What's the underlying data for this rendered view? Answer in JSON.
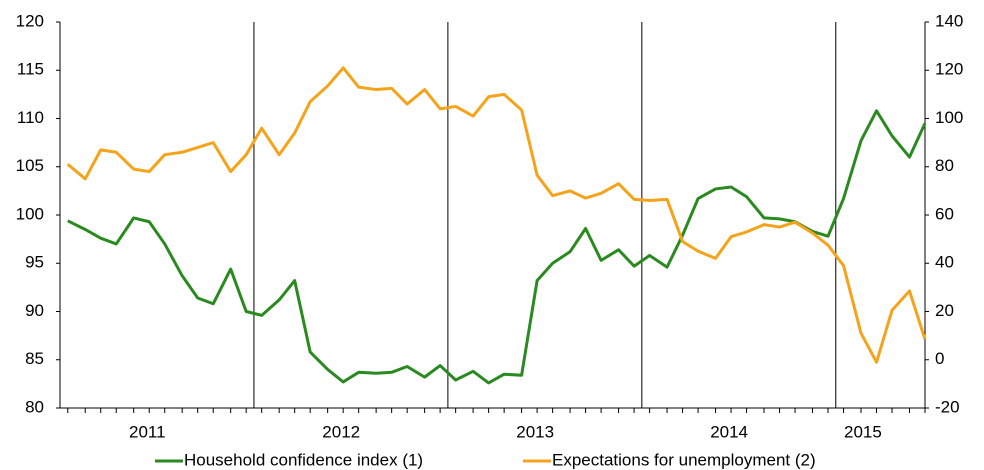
{
  "chart_data": {
    "type": "line",
    "x": [
      2011.04,
      2011.13,
      2011.21,
      2011.29,
      2011.38,
      2011.46,
      2011.54,
      2011.63,
      2011.71,
      2011.79,
      2011.88,
      2011.96,
      2012.04,
      2012.13,
      2012.21,
      2012.29,
      2012.38,
      2012.46,
      2012.54,
      2012.63,
      2012.71,
      2012.79,
      2012.88,
      2012.96,
      2013.04,
      2013.13,
      2013.21,
      2013.29,
      2013.38,
      2013.46,
      2013.54,
      2013.63,
      2013.71,
      2013.79,
      2013.88,
      2013.96,
      2014.04,
      2014.13,
      2014.21,
      2014.29,
      2014.38,
      2014.46,
      2014.54,
      2014.63,
      2014.71,
      2014.79,
      2014.88,
      2014.96,
      2015.04,
      2015.13,
      2015.21,
      2015.29,
      2015.38,
      2015.46
    ],
    "series": [
      {
        "name": "Household confidence index (1)",
        "color": "#2a8a1f",
        "axis": "y",
        "values": [
          99.4,
          98.5,
          97.6,
          97.0,
          99.7,
          99.3,
          97.0,
          93.7,
          91.4,
          90.8,
          94.4,
          90.0,
          89.6,
          91.2,
          93.2,
          85.8,
          84.0,
          82.7,
          83.7,
          83.6,
          83.7,
          84.3,
          83.2,
          84.4,
          82.9,
          83.8,
          82.6,
          83.5,
          83.4,
          93.2,
          95.0,
          96.2,
          98.6,
          95.3,
          96.4,
          94.7,
          95.8,
          94.6,
          97.9,
          101.7,
          102.7,
          102.9,
          101.9,
          99.7,
          99.6,
          99.3,
          98.3,
          97.8,
          101.7,
          107.7,
          110.8,
          108.2,
          106.0,
          109.5
        ]
      },
      {
        "name": "Expectations for unemployment (2)",
        "color": "#f5a31a",
        "axis": "y2",
        "values": [
          81,
          75,
          87,
          86,
          79,
          78,
          85,
          86,
          88,
          90,
          78,
          85,
          96,
          85,
          94,
          107,
          113.5,
          121,
          113,
          112,
          112.5,
          106,
          112,
          104,
          105,
          101,
          109,
          110,
          103.5,
          76.5,
          68,
          70,
          67,
          69,
          73,
          66.5,
          66,
          66.5,
          49,
          45,
          42,
          51,
          53,
          56,
          55,
          57,
          52.5,
          47.5,
          39,
          11,
          -1,
          20.5,
          28.5,
          8.5
        ]
      }
    ],
    "xlim": [
      2011,
      2015.46
    ],
    "xticks": [
      2012,
      2013,
      2014,
      2015
    ],
    "xlabels": [
      {
        "value": 2011.45,
        "label": "2011"
      },
      {
        "value": 2012.45,
        "label": "2012"
      },
      {
        "value": 2013.45,
        "label": "2013"
      },
      {
        "value": 2014.45,
        "label": "2014"
      },
      {
        "value": 2015.14,
        "label": "2015"
      }
    ],
    "ylim": [
      80,
      120
    ],
    "yticks": [
      80,
      85,
      90,
      95,
      100,
      105,
      110,
      115,
      120
    ],
    "y2lim": [
      -20,
      140
    ],
    "y2ticks": [
      -20,
      0,
      20,
      40,
      60,
      80,
      100,
      120,
      140
    ],
    "legend": "bottom"
  }
}
